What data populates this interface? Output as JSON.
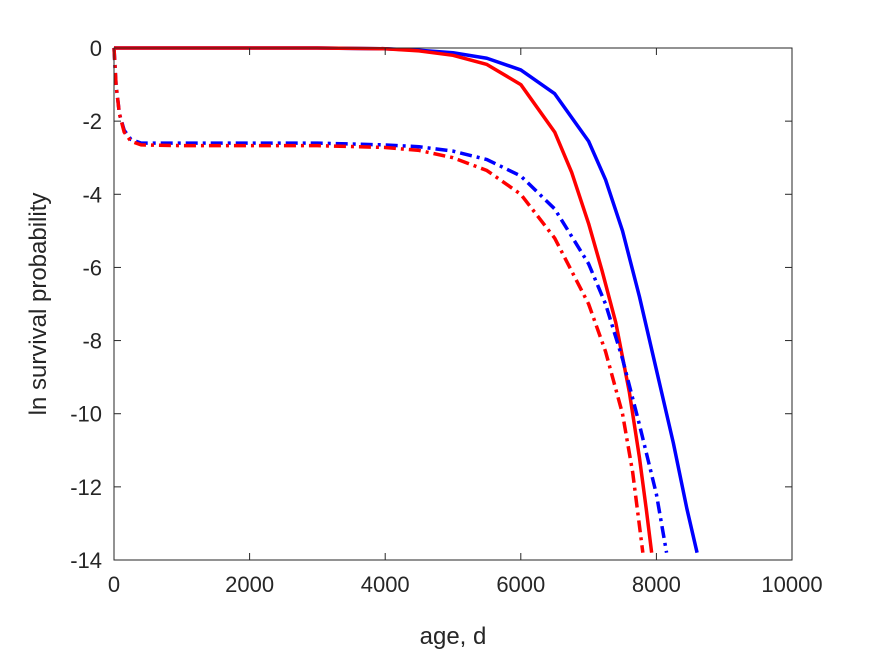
{
  "chart_data": {
    "type": "line",
    "xlabel": "age, d",
    "ylabel": "ln survival probability",
    "xlim": [
      0,
      10000
    ],
    "ylim": [
      -14,
      0
    ],
    "xticks": [
      0,
      2000,
      4000,
      6000,
      8000,
      10000
    ],
    "yticks": [
      0,
      -2,
      -4,
      -6,
      -8,
      -10,
      -12,
      -14
    ],
    "xtick_labels": [
      "0",
      "2000",
      "4000",
      "6000",
      "8000",
      "10000"
    ],
    "ytick_labels": [
      "0",
      "-2",
      "-4",
      "-6",
      "-8",
      "-10",
      "-12",
      "-14"
    ],
    "grid": false,
    "box": true,
    "series": [
      {
        "color": "#0000ff",
        "style": "solid",
        "points": [
          [
            0,
            0
          ],
          [
            1000,
            0
          ],
          [
            2000,
            0
          ],
          [
            3000,
            0
          ],
          [
            4000,
            -0.02
          ],
          [
            4500,
            -0.06
          ],
          [
            5000,
            -0.13
          ],
          [
            5500,
            -0.28
          ],
          [
            6000,
            -0.6
          ],
          [
            6500,
            -1.25
          ],
          [
            7000,
            -2.55
          ],
          [
            7250,
            -3.6
          ],
          [
            7500,
            -5.0
          ],
          [
            7750,
            -6.8
          ],
          [
            8000,
            -8.8
          ],
          [
            8250,
            -10.8
          ],
          [
            8450,
            -12.6
          ],
          [
            8600,
            -13.8
          ]
        ]
      },
      {
        "color": "#ff0000",
        "style": "solid",
        "points": [
          [
            0,
            0
          ],
          [
            1000,
            0
          ],
          [
            2000,
            0
          ],
          [
            3000,
            0
          ],
          [
            4000,
            -0.02
          ],
          [
            4500,
            -0.08
          ],
          [
            5000,
            -0.2
          ],
          [
            5500,
            -0.45
          ],
          [
            6000,
            -1.0
          ],
          [
            6500,
            -2.3
          ],
          [
            6750,
            -3.4
          ],
          [
            7000,
            -4.8
          ],
          [
            7200,
            -6.1
          ],
          [
            7400,
            -7.5
          ],
          [
            7600,
            -9.4
          ],
          [
            7750,
            -11.2
          ],
          [
            7850,
            -12.6
          ],
          [
            7930,
            -13.8
          ]
        ]
      },
      {
        "color": "#0000ff",
        "style": "dashdot",
        "points": [
          [
            0,
            0
          ],
          [
            30,
            -1.0
          ],
          [
            80,
            -1.8
          ],
          [
            150,
            -2.25
          ],
          [
            250,
            -2.5
          ],
          [
            400,
            -2.6
          ],
          [
            1000,
            -2.6
          ],
          [
            2000,
            -2.6
          ],
          [
            3000,
            -2.6
          ],
          [
            4000,
            -2.65
          ],
          [
            4500,
            -2.7
          ],
          [
            5000,
            -2.82
          ],
          [
            5500,
            -3.05
          ],
          [
            6000,
            -3.5
          ],
          [
            6500,
            -4.4
          ],
          [
            7000,
            -5.9
          ],
          [
            7250,
            -7.0
          ],
          [
            7500,
            -8.5
          ],
          [
            7750,
            -10.3
          ],
          [
            8000,
            -12.2
          ],
          [
            8150,
            -13.8
          ]
        ]
      },
      {
        "color": "#ff0000",
        "style": "dashdot",
        "points": [
          [
            0,
            0
          ],
          [
            30,
            -1.0
          ],
          [
            80,
            -1.8
          ],
          [
            150,
            -2.3
          ],
          [
            250,
            -2.55
          ],
          [
            400,
            -2.65
          ],
          [
            1000,
            -2.67
          ],
          [
            2000,
            -2.67
          ],
          [
            3000,
            -2.67
          ],
          [
            4000,
            -2.72
          ],
          [
            4500,
            -2.8
          ],
          [
            5000,
            -3.0
          ],
          [
            5500,
            -3.35
          ],
          [
            6000,
            -4.0
          ],
          [
            6500,
            -5.2
          ],
          [
            7000,
            -7.0
          ],
          [
            7250,
            -8.3
          ],
          [
            7500,
            -10.0
          ],
          [
            7650,
            -11.6
          ],
          [
            7800,
            -13.8
          ]
        ]
      }
    ]
  }
}
